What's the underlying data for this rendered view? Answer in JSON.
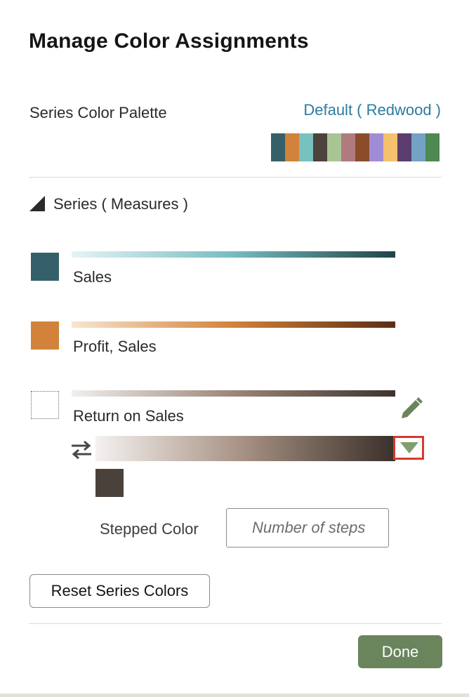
{
  "dialog": {
    "title": "Manage Color Assignments"
  },
  "palette": {
    "label": "Series Color Palette",
    "selected": "Default ( Redwood )",
    "swatches": [
      "#35606a",
      "#d2823a",
      "#77c1be",
      "#4c433c",
      "#a8c596",
      "#b07b7f",
      "#8b4c2a",
      "#9f8cd6",
      "#f4c26d",
      "#5a3d6e",
      "#73a2c4",
      "#4e8853"
    ]
  },
  "series": {
    "header": "Series ( Measures )",
    "items": [
      {
        "label": "Sales",
        "color": "#35606a",
        "gradient": [
          "#e4f4f7",
          "#76bcc0",
          "#1f4348"
        ]
      },
      {
        "label": "Profit, Sales",
        "color": "#d2823a",
        "gradient": [
          "#f8e6d0",
          "#d2823a",
          "#5a2e14"
        ]
      },
      {
        "label": "Return on Sales",
        "color": "",
        "gradient": [
          "#f1efed",
          "#9b8678",
          "#3d332c"
        ]
      }
    ],
    "editor": {
      "stop_color": "#4a413a",
      "gradient": [
        "#f4f1ef",
        "#a58f81",
        "#3a302a"
      ],
      "stepped_label": "Stepped Color",
      "steps_placeholder": "Number of steps",
      "steps_value": ""
    }
  },
  "buttons": {
    "reset": "Reset Series Colors",
    "done": "Done"
  },
  "icons": {
    "edit": "pencil-icon",
    "reverse": "swap-arrows-icon",
    "dropdown": "triangle-down-icon",
    "collapse": "triangle-expanded-icon"
  },
  "colors": {
    "link": "#2a7ba0",
    "primary_button": "#6a845c",
    "highlight": "#d73a2c",
    "pencil": "#6a845c"
  }
}
